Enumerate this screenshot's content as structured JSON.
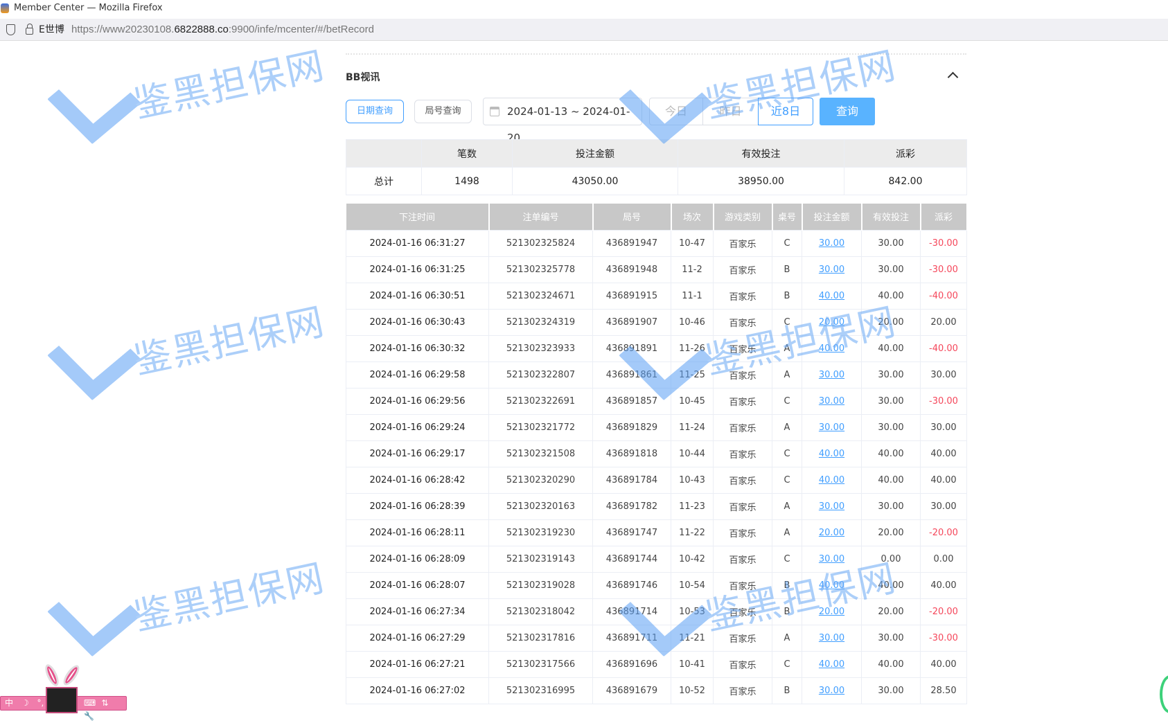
{
  "window": {
    "title": "Member Center — Mozilla Firefox"
  },
  "urlbar": {
    "site": "E世博",
    "url_prefix": "https://www20230108.",
    "url_domain": "6822888.co",
    "url_suffix": ":9900/infe/mcenter/#/betRecord"
  },
  "section": {
    "title": "BB视讯"
  },
  "filters": {
    "date_query": "日期查询",
    "round_query": "局号查询",
    "date_range": "2024-01-13 ~ 2024-01-20",
    "today": "今日",
    "yesterday": "昨日",
    "last8": "近8日",
    "search": "查询"
  },
  "summary": {
    "headers": [
      "",
      "笔数",
      "投注金额",
      "有效投注",
      "派彩"
    ],
    "row": [
      "总计",
      "1498",
      "43050.00",
      "38950.00",
      "842.00"
    ]
  },
  "table": {
    "headers": [
      "下注时间",
      "注单编号",
      "局号",
      "场次",
      "游戏类别",
      "桌号",
      "投注金额",
      "有效投注",
      "派彩"
    ],
    "rows": [
      [
        "2024-01-16 06:31:27",
        "521302325824",
        "436891947",
        "10-47",
        "百家乐",
        "C",
        "30.00",
        "30.00",
        "-30.00"
      ],
      [
        "2024-01-16 06:31:25",
        "521302325778",
        "436891948",
        "11-2",
        "百家乐",
        "B",
        "30.00",
        "30.00",
        "-30.00"
      ],
      [
        "2024-01-16 06:30:51",
        "521302324671",
        "436891915",
        "11-1",
        "百家乐",
        "B",
        "40.00",
        "40.00",
        "-40.00"
      ],
      [
        "2024-01-16 06:30:43",
        "521302324319",
        "436891907",
        "10-46",
        "百家乐",
        "C",
        "20.00",
        "20.00",
        "20.00"
      ],
      [
        "2024-01-16 06:30:32",
        "521302323933",
        "436891891",
        "11-26",
        "百家乐",
        "A",
        "40.00",
        "40.00",
        "-40.00"
      ],
      [
        "2024-01-16 06:29:58",
        "521302322807",
        "436891861",
        "11-25",
        "百家乐",
        "A",
        "30.00",
        "30.00",
        "30.00"
      ],
      [
        "2024-01-16 06:29:56",
        "521302322691",
        "436891857",
        "10-45",
        "百家乐",
        "C",
        "30.00",
        "30.00",
        "-30.00"
      ],
      [
        "2024-01-16 06:29:24",
        "521302321772",
        "436891829",
        "11-24",
        "百家乐",
        "A",
        "30.00",
        "30.00",
        "30.00"
      ],
      [
        "2024-01-16 06:29:17",
        "521302321508",
        "436891818",
        "10-44",
        "百家乐",
        "C",
        "40.00",
        "40.00",
        "40.00"
      ],
      [
        "2024-01-16 06:28:42",
        "521302320290",
        "436891784",
        "10-43",
        "百家乐",
        "C",
        "40.00",
        "40.00",
        "40.00"
      ],
      [
        "2024-01-16 06:28:39",
        "521302320163",
        "436891782",
        "11-23",
        "百家乐",
        "A",
        "30.00",
        "30.00",
        "30.00"
      ],
      [
        "2024-01-16 06:28:11",
        "521302319230",
        "436891747",
        "11-22",
        "百家乐",
        "A",
        "20.00",
        "20.00",
        "-20.00"
      ],
      [
        "2024-01-16 06:28:09",
        "521302319143",
        "436891744",
        "10-42",
        "百家乐",
        "C",
        "30.00",
        "0.00",
        "0.00"
      ],
      [
        "2024-01-16 06:28:07",
        "521302319028",
        "436891746",
        "10-54",
        "百家乐",
        "B",
        "40.00",
        "40.00",
        "40.00"
      ],
      [
        "2024-01-16 06:27:34",
        "521302318042",
        "436891714",
        "10-53",
        "百家乐",
        "B",
        "20.00",
        "20.00",
        "-20.00"
      ],
      [
        "2024-01-16 06:27:29",
        "521302317816",
        "436891711",
        "11-21",
        "百家乐",
        "A",
        "30.00",
        "30.00",
        "-30.00"
      ],
      [
        "2024-01-16 06:27:21",
        "521302317566",
        "436891696",
        "10-41",
        "百家乐",
        "C",
        "40.00",
        "40.00",
        "40.00"
      ],
      [
        "2024-01-16 06:27:02",
        "521302316995",
        "436891679",
        "10-52",
        "百家乐",
        "B",
        "30.00",
        "30.00",
        "28.50"
      ]
    ]
  },
  "watermark": {
    "text": "鉴黑担保网"
  },
  "ime": {
    "lang": "中",
    "moon": "☽",
    "punct": "°,",
    "keyboard": "⌨",
    "switch": "⇅",
    "tool": "🔧"
  },
  "colors": {
    "accent": "#409eff",
    "negative": "#f5475b",
    "search_button": "#59b3ff"
  }
}
